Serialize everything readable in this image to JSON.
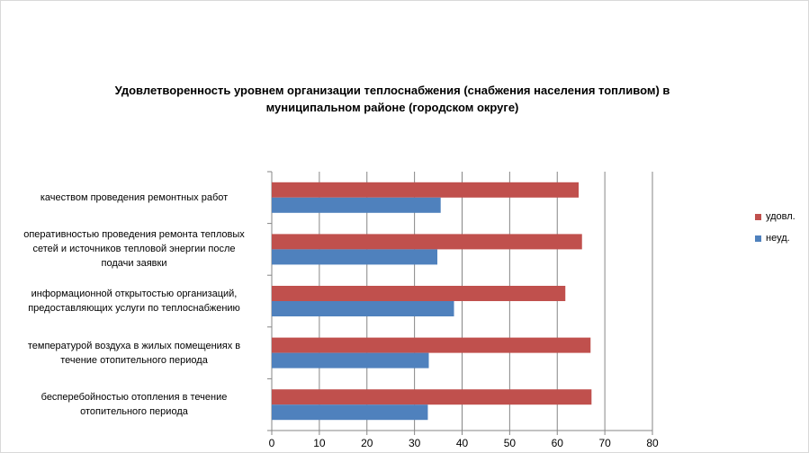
{
  "chart_data": {
    "type": "bar",
    "orientation": "horizontal",
    "title": "Удовлетворенность уровнем организации теплоснабжения (снабжения населения топливом) в муниципальном районе (городском округе)",
    "title_lines": [
      "Удовлетворенность уровнем организации теплоснабжения (снабжения населения топливом) в",
      "муниципальном районе (городском округе)"
    ],
    "categories": [
      "качеством проведения ремонтных работ",
      "оперативностью проведения ремонта тепловых сетей и источников тепловой энергии после подачи заявки",
      "информационной открытостью организаций, предоставляющих услуги по теплоснабжению",
      "температурой воздуха в жилых помещениях в течение отопительного периода",
      "бесперебойностью отопления в течение отопительного периода"
    ],
    "category_lines": [
      [
        "качеством проведения ремонтных работ"
      ],
      [
        "оперативностью проведения ремонта тепловых",
        "сетей и источников тепловой энергии после",
        "подачи заявки"
      ],
      [
        "информационной открытостью организаций,",
        "предоставляющих услуги по теплоснабжению"
      ],
      [
        "температурой воздуха в жилых помещениях в",
        "течение отопительного периода"
      ],
      [
        "бесперебойностью отопления в течение",
        "отопительного периода"
      ]
    ],
    "series": [
      {
        "name": "удовл.",
        "color": "#c0504d",
        "values": [
          64.5,
          65.2,
          61.7,
          67.0,
          67.2
        ]
      },
      {
        "name": "неуд.",
        "color": "#4f81bd",
        "values": [
          35.5,
          34.8,
          38.3,
          33.0,
          32.8
        ]
      }
    ],
    "xlim": [
      0,
      80
    ],
    "x_ticks": [
      0,
      10,
      20,
      30,
      40,
      50,
      60,
      70,
      80
    ],
    "grid": true,
    "legend_position": "right"
  }
}
